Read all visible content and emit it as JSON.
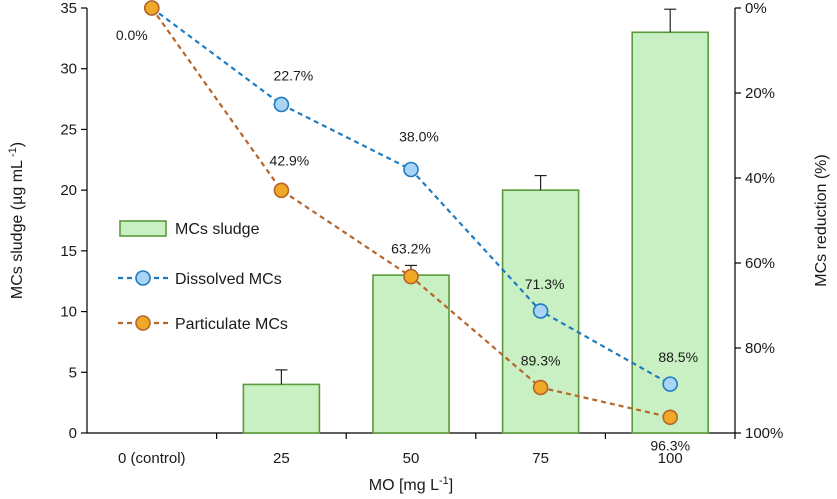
{
  "chart_data": {
    "type": "bar+line",
    "x_label_text": "MO [mg L",
    "x_label_sup": "-1",
    "x_label_end": "]",
    "categories": [
      "0 (control)",
      "25",
      "50",
      "75",
      "100"
    ],
    "y_left": {
      "label_text": "MCs sludge (µg mL",
      "label_sup": " -1",
      "label_end": ")",
      "range": [
        0,
        35
      ],
      "ticks": [
        0,
        5,
        10,
        15,
        20,
        25,
        30,
        35
      ]
    },
    "y_right": {
      "label": "MCs reduction (%)",
      "range": [
        0,
        100
      ],
      "ticks": [
        0,
        20,
        40,
        60,
        80,
        100
      ],
      "tick_labels": [
        "0%",
        "20%",
        "40%",
        "60%",
        "80%",
        "100%"
      ],
      "inverted": true
    },
    "bars": {
      "name": "MCs sludge",
      "values": [
        null,
        4.0,
        13.0,
        20.0,
        33.0
      ],
      "errors": [
        null,
        1.2,
        0.8,
        1.2,
        1.9
      ],
      "fill": "#c9f0c2",
      "stroke": "#5a9a3c"
    },
    "series": [
      {
        "name": "Dissolved MCs",
        "axis": "right",
        "values": [
          0.0,
          22.7,
          38.0,
          71.3,
          88.5
        ],
        "labels": [
          "0.0%",
          "22.7%",
          "38.0%",
          "71.3%",
          "88.5%"
        ],
        "line_color": "#1f7bc0",
        "marker_fill": "#a9d4f5",
        "marker_stroke": "#1f7bc0"
      },
      {
        "name": "Particulate MCs",
        "axis": "right",
        "values": [
          0.0,
          42.9,
          63.2,
          89.3,
          96.3
        ],
        "labels": [
          "",
          "42.9%",
          "63.2%",
          "89.3%",
          "96.3%"
        ],
        "line_color": "#b5652a",
        "marker_fill": "#f0a826",
        "marker_stroke": "#b5652a"
      }
    ]
  }
}
